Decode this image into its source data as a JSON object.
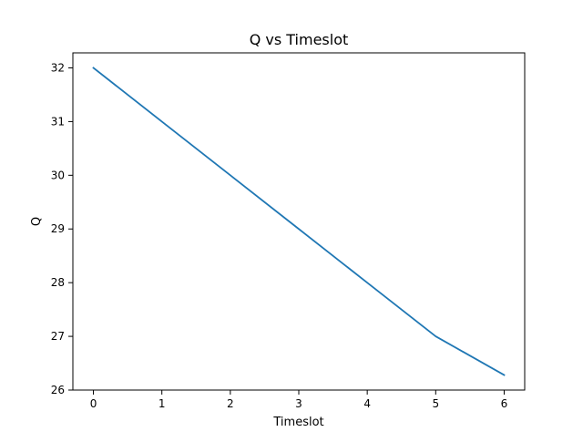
{
  "chart_data": {
    "type": "line",
    "title": "Q vs Timeslot",
    "xlabel": "Timeslot",
    "ylabel": "Q",
    "x": [
      0,
      1,
      2,
      3,
      4,
      5,
      6
    ],
    "series": [
      {
        "values": [
          32,
          31,
          30,
          29,
          28,
          27,
          26.28
        ],
        "color": "#1f77b4"
      }
    ],
    "xlim": [
      -0.3,
      6.3
    ],
    "ylim": [
      26,
      32.28
    ],
    "xticks": [
      0,
      1,
      2,
      3,
      4,
      5,
      6
    ],
    "yticks": [
      26,
      27,
      28,
      29,
      30,
      31,
      32
    ],
    "grid": false,
    "legend": "none"
  }
}
